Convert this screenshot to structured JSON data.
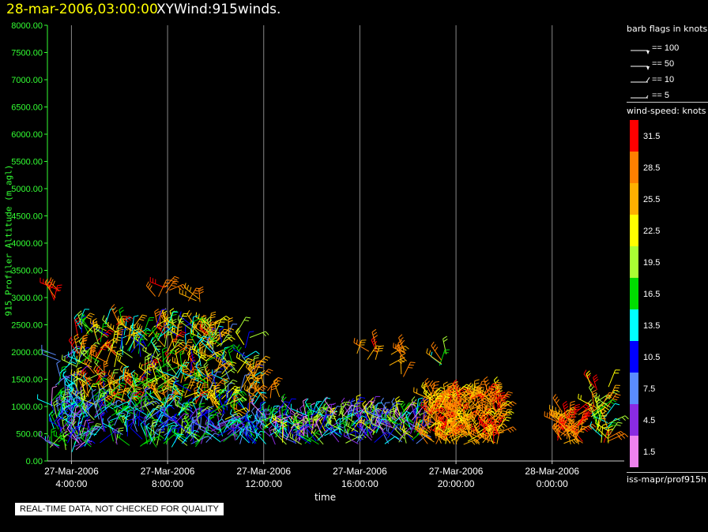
{
  "header": {
    "datetime": "28-mar-2006,03:00:00",
    "title": "XYWind:915winds."
  },
  "qc_notice": "REAL-TIME DATA, NOT CHECKED FOR QUALITY",
  "legend": {
    "barb_title": "barb flags in knots",
    "barbs": [
      {
        "label": "== 100",
        "kind": "pennant"
      },
      {
        "label": "== 50",
        "kind": "pennant"
      },
      {
        "label": "== 10",
        "kind": "full"
      },
      {
        "label": "== 5",
        "kind": "half"
      }
    ],
    "speed_title": "wind-speed: knots",
    "speed_bins": [
      {
        "label": "31.5",
        "color": "#ff0000"
      },
      {
        "label": "28.5",
        "color": "#ff8000"
      },
      {
        "label": "25.5",
        "color": "#ffb000"
      },
      {
        "label": "22.5",
        "color": "#ffff00"
      },
      {
        "label": "19.5",
        "color": "#aaff33"
      },
      {
        "label": "16.5",
        "color": "#00dd00"
      },
      {
        "label": "13.5",
        "color": "#00ffff"
      },
      {
        "label": "10.5",
        "color": "#0000ff"
      },
      {
        "label": "7.5",
        "color": "#5a8cff"
      },
      {
        "label": "4.5",
        "color": "#8a2be2"
      },
      {
        "label": "1.5",
        "color": "#ee82ee"
      }
    ],
    "source": "iss-mapr/prof915h"
  },
  "chart_data": {
    "type": "scatter",
    "mark": "wind-barb",
    "ylabel": "915 Profiler Altitude (m agl)",
    "xlabel": "time",
    "ylim": [
      0,
      8000
    ],
    "y_ticks": [
      "0.00",
      "500.00",
      "1000.00",
      "1500.00",
      "2000.00",
      "2500.00",
      "3000.00",
      "3500.00",
      "4000.00",
      "4500.00",
      "5000.00",
      "5500.00",
      "6000.00",
      "6500.00",
      "7000.00",
      "7500.00",
      "8000.00"
    ],
    "x_range_hours": [
      3.0,
      27.0
    ],
    "x_ticks": [
      {
        "hour": 4,
        "label1": "27-Mar-2006",
        "label2": "4:00:00"
      },
      {
        "hour": 8,
        "label1": "27-Mar-2006",
        "label2": "8:00:00"
      },
      {
        "hour": 12,
        "label1": "27-Mar-2006",
        "label2": "12:00:00"
      },
      {
        "hour": 16,
        "label1": "27-Mar-2006",
        "label2": "16:00:00"
      },
      {
        "hour": 20,
        "label1": "27-Mar-2006",
        "label2": "20:00:00"
      },
      {
        "hour": 24,
        "label1": "28-Mar-2006",
        "label2": "0:00:00"
      }
    ],
    "grid": "vertical",
    "clusters": [
      {
        "x": [
          3.1,
          4.6
        ],
        "y": [
          150,
          1100
        ],
        "speed": [
          1.5,
          19.5
        ],
        "n": 90
      },
      {
        "x": [
          3.3,
          4.5
        ],
        "y": [
          1100,
          2000
        ],
        "speed": [
          4.5,
          16.5
        ],
        "n": 20
      },
      {
        "x": [
          3.2,
          3.5
        ],
        "y": [
          2850,
          3200
        ],
        "speed": [
          28.5,
          31.5
        ],
        "n": 5
      },
      {
        "x": [
          4.2,
          10.0
        ],
        "y": [
          1000,
          2550
        ],
        "speed": [
          10.5,
          31.5
        ],
        "n": 320
      },
      {
        "x": [
          4.5,
          9.5
        ],
        "y": [
          250,
          1000
        ],
        "speed": [
          4.5,
          19.5
        ],
        "n": 160
      },
      {
        "x": [
          7.2,
          8.1
        ],
        "y": [
          2950,
          3200
        ],
        "speed": [
          28.5,
          31.5
        ],
        "n": 6
      },
      {
        "x": [
          8.8,
          9.4
        ],
        "y": [
          2700,
          3050
        ],
        "speed": [
          25.5,
          31.5
        ],
        "n": 4
      },
      {
        "x": [
          9.6,
          11.6
        ],
        "y": [
          700,
          2400
        ],
        "speed": [
          7.5,
          28.5
        ],
        "n": 90
      },
      {
        "x": [
          9.5,
          11.8
        ],
        "y": [
          300,
          700
        ],
        "speed": [
          4.5,
          16.5
        ],
        "n": 60
      },
      {
        "x": [
          11.5,
          12.8
        ],
        "y": [
          1100,
          1600
        ],
        "speed": [
          22.5,
          31.5
        ],
        "n": 14
      },
      {
        "x": [
          11.8,
          18.6
        ],
        "y": [
          300,
          900
        ],
        "speed": [
          1.5,
          22.5
        ],
        "n": 270
      },
      {
        "x": [
          15.8,
          16.8
        ],
        "y": [
          1800,
          2100
        ],
        "speed": [
          25.5,
          31.5
        ],
        "n": 6
      },
      {
        "x": [
          17.2,
          18.0
        ],
        "y": [
          1400,
          2000
        ],
        "speed": [
          25.5,
          31.5
        ],
        "n": 8
      },
      {
        "x": [
          18.8,
          21.9
        ],
        "y": [
          300,
          1200
        ],
        "speed": [
          22.5,
          31.5
        ],
        "n": 260
      },
      {
        "x": [
          19.2,
          20.0
        ],
        "y": [
          1600,
          2000
        ],
        "speed": [
          13.5,
          31.5
        ],
        "n": 5
      },
      {
        "x": [
          24.2,
          25.3
        ],
        "y": [
          300,
          900
        ],
        "speed": [
          25.5,
          31.5
        ],
        "n": 55
      },
      {
        "x": [
          25.6,
          26.5
        ],
        "y": [
          300,
          1400
        ],
        "speed": [
          13.5,
          31.5
        ],
        "n": 40
      }
    ]
  }
}
